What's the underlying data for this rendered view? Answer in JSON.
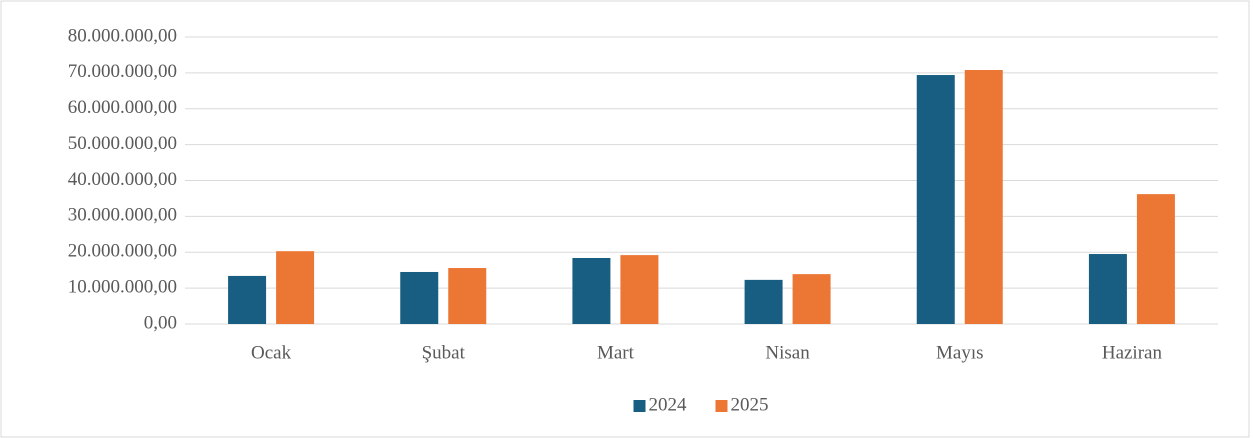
{
  "chart_data": {
    "type": "bar",
    "categories": [
      "Ocak",
      "Şubat",
      "Mart",
      "Nisan",
      "Mayıs",
      "Haziran"
    ],
    "series": [
      {
        "name": "2024",
        "color": "#175e82",
        "values": [
          13400000,
          14500000,
          18400000,
          12300000,
          69400000,
          19500000
        ]
      },
      {
        "name": "2025",
        "color": "#ec7634",
        "values": [
          20300000,
          15600000,
          19200000,
          13900000,
          70800000,
          36200000
        ]
      }
    ],
    "ylim": [
      0,
      80000000
    ],
    "yticks": [
      {
        "value": 0,
        "label": "0,00"
      },
      {
        "value": 10000000,
        "label": "10.000.000,00"
      },
      {
        "value": 20000000,
        "label": "20.000.000,00"
      },
      {
        "value": 30000000,
        "label": "30.000.000,00"
      },
      {
        "value": 40000000,
        "label": "40.000.000,00"
      },
      {
        "value": 50000000,
        "label": "50.000.000,00"
      },
      {
        "value": 60000000,
        "label": "60.000.000,00"
      },
      {
        "value": 70000000,
        "label": "70.000.000,00"
      },
      {
        "value": 80000000,
        "label": "80.000.000,00"
      }
    ],
    "grid": true,
    "legend": "bottom"
  }
}
